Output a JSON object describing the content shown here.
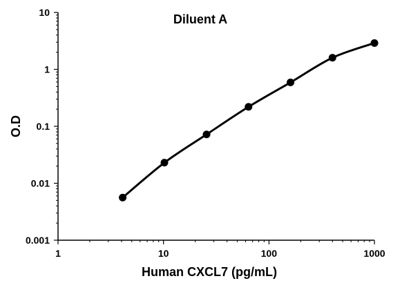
{
  "chart_data": {
    "type": "line",
    "title": "Diluent A",
    "xlabel": "Human CXCL7 (pg/mL)",
    "ylabel": "O.D",
    "xscale": "log",
    "yscale": "log",
    "xlim": [
      1,
      1000
    ],
    "ylim": [
      0.001,
      10
    ],
    "xticks": [
      "1",
      "10",
      "100",
      "1000"
    ],
    "yticks": [
      "0.001",
      "0.01",
      "0.1",
      "1",
      "10"
    ],
    "grid": false,
    "series": [
      {
        "x": [
          4.1,
          10.2,
          25.6,
          64,
          160,
          400,
          1000
        ],
        "y": [
          0.0056,
          0.023,
          0.072,
          0.22,
          0.59,
          1.6,
          2.9
        ]
      }
    ],
    "colors": {
      "line": "#000000",
      "marker": "#000000"
    }
  }
}
